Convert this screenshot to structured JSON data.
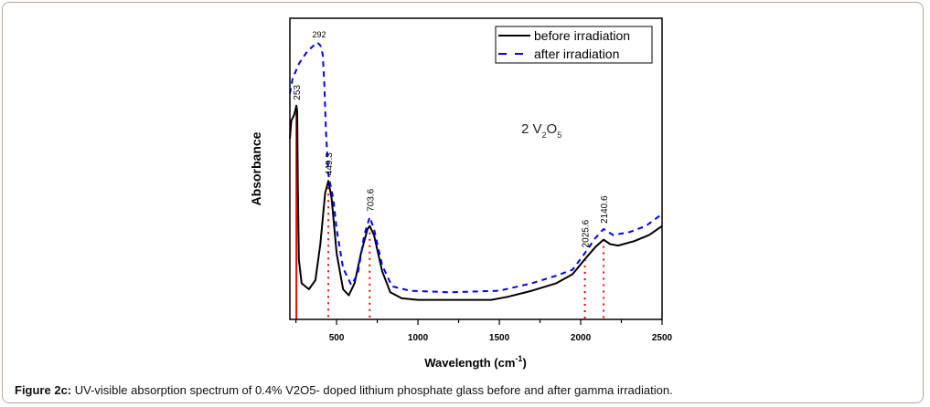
{
  "caption": {
    "label": "Figure 2c:",
    "text": " UV-visible absorption spectrum of 0.4% V2O5- doped lithium phosphate glass before and after gamma irradiation."
  },
  "chart_data": {
    "type": "line",
    "xlabel": "Wavelength (cm",
    "xlabel_sup": "-1",
    "xlabel_end": ")",
    "ylabel": "Absorbance",
    "xlim": [
      213,
      2500
    ],
    "ylim": [
      0,
      1
    ],
    "y_units": "arbitrary (no tick labels)",
    "x_ticks": [
      500,
      1000,
      1500,
      2000,
      2500
    ],
    "x_minor_step": 250,
    "grid": false,
    "legend_placement": "top-right",
    "sample_label_parts": [
      "2 V",
      "2",
      "O",
      "5"
    ],
    "series": [
      {
        "name": "before irradiation",
        "color": "#000000",
        "dash": "solid",
        "points": [
          [
            213,
            0.6
          ],
          [
            222,
            0.66
          ],
          [
            240,
            0.68
          ],
          [
            253,
            0.71
          ],
          [
            258,
            0.69
          ],
          [
            262,
            0.45
          ],
          [
            268,
            0.2
          ],
          [
            285,
            0.12
          ],
          [
            330,
            0.1
          ],
          [
            370,
            0.13
          ],
          [
            400,
            0.25
          ],
          [
            430,
            0.42
          ],
          [
            449.3,
            0.46
          ],
          [
            470,
            0.4
          ],
          [
            500,
            0.22
          ],
          [
            540,
            0.1
          ],
          [
            575,
            0.08
          ],
          [
            610,
            0.12
          ],
          [
            650,
            0.22
          ],
          [
            690,
            0.3
          ],
          [
            703.6,
            0.31
          ],
          [
            730,
            0.28
          ],
          [
            780,
            0.16
          ],
          [
            830,
            0.09
          ],
          [
            900,
            0.07
          ],
          [
            1000,
            0.065
          ],
          [
            1200,
            0.065
          ],
          [
            1450,
            0.065
          ],
          [
            1550,
            0.075
          ],
          [
            1700,
            0.095
          ],
          [
            1850,
            0.12
          ],
          [
            1950,
            0.15
          ],
          [
            2025.6,
            0.2
          ],
          [
            2090,
            0.24
          ],
          [
            2140.6,
            0.265
          ],
          [
            2180,
            0.25
          ],
          [
            2230,
            0.245
          ],
          [
            2330,
            0.26
          ],
          [
            2420,
            0.28
          ],
          [
            2500,
            0.31
          ]
        ]
      },
      {
        "name": "after irradiation",
        "color": "#0000ff",
        "dash": "dashed",
        "points": [
          [
            213,
            0.75
          ],
          [
            230,
            0.8
          ],
          [
            270,
            0.85
          ],
          [
            320,
            0.89
          ],
          [
            360,
            0.91
          ],
          [
            380,
            0.92
          ],
          [
            400,
            0.91
          ],
          [
            415,
            0.88
          ],
          [
            425,
            0.78
          ],
          [
            435,
            0.62
          ],
          [
            450,
            0.48
          ],
          [
            465,
            0.44
          ],
          [
            480,
            0.4
          ],
          [
            500,
            0.3
          ],
          [
            540,
            0.17
          ],
          [
            590,
            0.115
          ],
          [
            630,
            0.15
          ],
          [
            670,
            0.28
          ],
          [
            703.6,
            0.34
          ],
          [
            730,
            0.3
          ],
          [
            780,
            0.18
          ],
          [
            840,
            0.11
          ],
          [
            950,
            0.095
          ],
          [
            1200,
            0.09
          ],
          [
            1500,
            0.095
          ],
          [
            1700,
            0.12
          ],
          [
            1850,
            0.145
          ],
          [
            1950,
            0.165
          ],
          [
            2025.6,
            0.22
          ],
          [
            2090,
            0.27
          ],
          [
            2140.6,
            0.3
          ],
          [
            2200,
            0.28
          ],
          [
            2300,
            0.29
          ],
          [
            2400,
            0.31
          ],
          [
            2500,
            0.35
          ]
        ]
      }
    ],
    "peak_annotations": [
      {
        "label": "292",
        "x": 292,
        "marker": "none"
      },
      {
        "label": "253",
        "x": 253,
        "marker": "solid-red"
      },
      {
        "label": "449.3",
        "x": 449.3,
        "marker": "dotted-red"
      },
      {
        "label": "703.6",
        "x": 703.6,
        "marker": "dotted-red"
      },
      {
        "label": "2025.6",
        "x": 2025.6,
        "marker": "dotted-red"
      },
      {
        "label": "2140.6",
        "x": 2140.6,
        "marker": "dotted-red"
      }
    ],
    "marker_color": "#ff0000"
  }
}
